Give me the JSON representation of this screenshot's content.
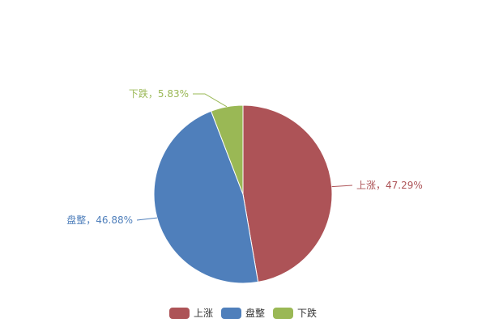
{
  "chart_data": {
    "type": "pie",
    "title": "",
    "legend_placement": "bottom",
    "slices": [
      {
        "name": "上涨",
        "value": 47.29,
        "label": "上涨，47.29%",
        "color": "#AD5357"
      },
      {
        "name": "盘整",
        "value": 46.88,
        "label": "盘整，46.88%",
        "color": "#4F7FBB"
      },
      {
        "name": "下跌",
        "value": 5.83,
        "label": "下跌，5.83%",
        "color": "#9AB855"
      }
    ],
    "legend": [
      "上涨",
      "盘整",
      "下跌"
    ]
  }
}
